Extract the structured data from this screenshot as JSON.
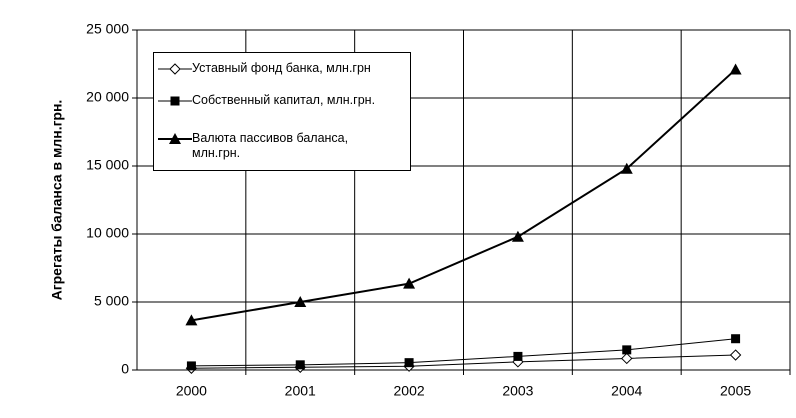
{
  "chart_data": {
    "type": "line",
    "y_label": "Агрегаты баланса в млн.грн.",
    "categories": [
      "2000",
      "2001",
      "2002",
      "2003",
      "2004",
      "2005"
    ],
    "series": [
      {
        "name": "Уставный фонд банка, млн.грн",
        "color": "#000000",
        "marker": "diamond",
        "line_width": 1,
        "values": [
          130,
          200,
          280,
          600,
          850,
          1100
        ]
      },
      {
        "name": "Собственный капитал, млн.грн.",
        "color": "#000000",
        "marker": "square",
        "line_width": 1,
        "values": [
          300,
          380,
          540,
          1000,
          1480,
          2300
        ]
      },
      {
        "name": "Валюта пассивов баланса, млн.грн.",
        "color": "#000000",
        "marker": "triangle",
        "line_width": 2,
        "values": [
          3650,
          5000,
          6350,
          9800,
          14800,
          22100
        ]
      }
    ],
    "ylim": [
      0,
      25000
    ],
    "yticks": [
      0,
      {
        "value": 5000,
        "label": "5 000"
      },
      {
        "value": 10000,
        "label": "10 000"
      },
      {
        "value": 15000,
        "label": "15 000"
      },
      {
        "value": 20000,
        "label": "20 000"
      },
      {
        "value": 25000,
        "label": "25 000"
      }
    ],
    "grid": true
  }
}
